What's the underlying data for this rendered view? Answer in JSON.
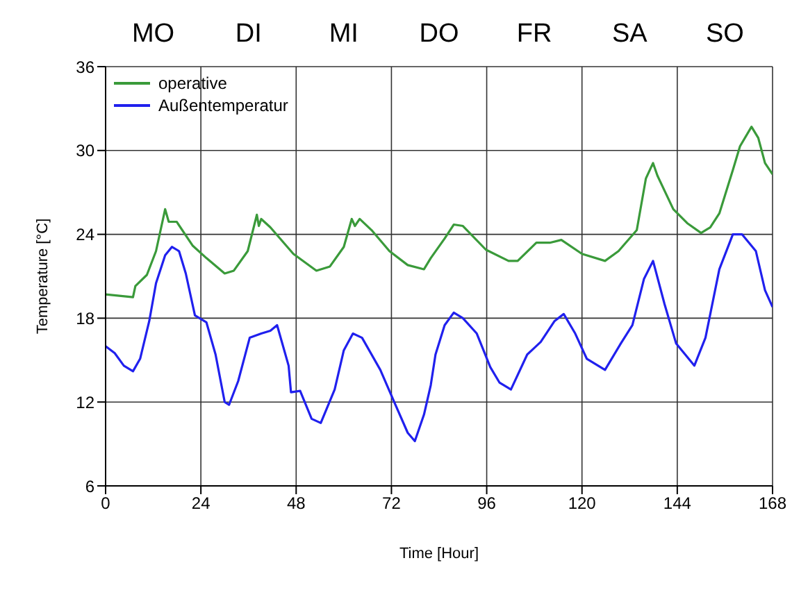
{
  "chart_data": {
    "type": "line",
    "xlabel": "Time  [Hour]",
    "ylabel": "Temperature [°C]",
    "xlim": [
      0,
      168
    ],
    "xticks": [
      0,
      24,
      48,
      72,
      96,
      120,
      144,
      168
    ],
    "ylim": [
      6,
      36
    ],
    "yticks": [
      6,
      12,
      18,
      24,
      30,
      36
    ],
    "annotations": [
      "MO",
      "DI",
      "MI",
      "DO",
      "FR",
      "SA",
      "SO"
    ],
    "grid": true,
    "legend": "top left",
    "marker": "none",
    "line_style": "solid",
    "series": [
      {
        "name": "operative",
        "color": "#3a9a3a",
        "x": [
          0,
          6.9,
          7.5,
          10.4,
          12.7,
          15,
          15.9,
          17.9,
          21.9,
          25.4,
          30,
          32.3,
          35.8,
          38.1,
          38.6,
          39.2,
          41.5,
          47.3,
          53.1,
          56.5,
          60,
          62,
          62.8,
          64,
          67,
          71.5,
          76.1,
          80.2,
          81.9,
          85.4,
          87.7,
          90,
          95.8,
          101.5,
          103.8,
          108.5,
          111.9,
          114.8,
          120,
          125.8,
          129.2,
          133.8,
          136.1,
          137.9,
          139,
          143,
          146.5,
          150,
          152.3,
          154.6,
          158,
          159.8,
          162.7,
          164.4,
          166.1,
          168
        ],
        "values": [
          19.7,
          19.5,
          20.3,
          21.1,
          22.8,
          25.8,
          24.9,
          24.9,
          23.2,
          22.3,
          21.2,
          21.4,
          22.8,
          25.4,
          24.6,
          25.1,
          24.5,
          22.6,
          21.4,
          21.7,
          23.1,
          25.1,
          24.6,
          25.1,
          24.3,
          22.8,
          21.8,
          21.5,
          22.3,
          23.7,
          24.7,
          24.6,
          22.9,
          22.1,
          22.1,
          23.4,
          23.4,
          23.6,
          22.6,
          22.1,
          22.8,
          24.3,
          28.0,
          29.1,
          28.2,
          25.8,
          24.8,
          24.1,
          24.5,
          25.5,
          28.6,
          30.3,
          31.7,
          30.9,
          29.1,
          28.3
        ]
      },
      {
        "name": "Außentemperatur",
        "color": "#2020ee",
        "x": [
          0,
          2.3,
          4.6,
          6.9,
          8.7,
          11,
          12.7,
          15,
          16.7,
          18.5,
          20.2,
          22.5,
          25.4,
          27.7,
          30,
          31.1,
          33.4,
          36.3,
          39.2,
          41.5,
          43.2,
          46.1,
          46.7,
          49,
          51.9,
          54.2,
          57.7,
          60,
          62.3,
          64.6,
          69.2,
          72.7,
          76.1,
          77.9,
          80.2,
          81.9,
          83.1,
          85.4,
          87.7,
          90,
          93.5,
          96.9,
          99.2,
          102.1,
          106.2,
          109.6,
          113.1,
          115.4,
          118.3,
          121.2,
          125.8,
          129.8,
          132.7,
          135.6,
          137.9,
          140.8,
          143.7,
          148.3,
          151.1,
          154.6,
          158,
          160.3,
          163.8,
          166.1,
          168
        ],
        "values": [
          16.0,
          15.5,
          14.6,
          14.2,
          15.1,
          17.8,
          20.5,
          22.5,
          23.1,
          22.8,
          21.2,
          18.2,
          17.7,
          15.4,
          12.0,
          11.8,
          13.5,
          16.6,
          16.9,
          17.1,
          17.5,
          14.6,
          12.7,
          12.8,
          10.8,
          10.5,
          12.9,
          15.7,
          16.9,
          16.6,
          14.3,
          12.0,
          9.8,
          9.2,
          11.1,
          13.2,
          15.4,
          17.5,
          18.4,
          18.0,
          16.9,
          14.5,
          13.4,
          12.9,
          15.4,
          16.3,
          17.8,
          18.3,
          16.9,
          15.1,
          14.3,
          16.2,
          17.5,
          20.8,
          22.1,
          19.0,
          16.2,
          14.6,
          16.6,
          21.5,
          24.0,
          24.0,
          22.8,
          20.0,
          18.8
        ]
      }
    ]
  }
}
